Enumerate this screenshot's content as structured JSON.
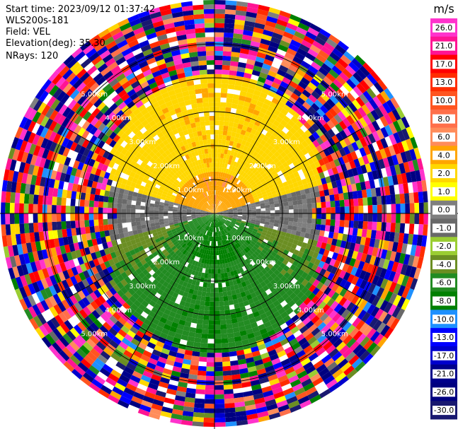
{
  "header": {
    "start_time": "Start time: 2023/09/12 01:37:42",
    "instrument": "WLS200s-181",
    "field": "Field: VEL",
    "elevation": "Elevation(deg): 35.30",
    "nrays": "NRays: 120"
  },
  "chart_data": {
    "type": "heatmap",
    "projection": "polar (PPI scan)",
    "field": "VEL",
    "n_rays": 120,
    "range_rings_km": [
      1.0,
      2.0,
      3.0,
      4.0,
      5.0
    ],
    "ring_labels": [
      "1.00km",
      "2.00km",
      "3.00km",
      "4.00km",
      "5.00km"
    ],
    "spokes": 12,
    "max_range_km": 6.3,
    "valid_range_km": 3.5,
    "colorbar": {
      "unit": "m/s",
      "ticks": [
        "26.0",
        "21.0",
        "17.0",
        "13.0",
        "10.0",
        "8.0",
        "6.0",
        "4.0",
        "2.0",
        "1.0",
        "0.0",
        "-1.0",
        "-2.0",
        "-4.0",
        "-6.0",
        "-8.0",
        "-10.0",
        "-13.0",
        "-17.0",
        "-21.0",
        "-26.0",
        "-30.0"
      ],
      "bins": [
        {
          "min": 26,
          "max": 30,
          "color": "#ff33cc"
        },
        {
          "min": 21,
          "max": 26,
          "color": "#ff1493"
        },
        {
          "min": 17,
          "max": 21,
          "color": "#ff0000"
        },
        {
          "min": 13,
          "max": 17,
          "color": "#ff2d00"
        },
        {
          "min": 10,
          "max": 13,
          "color": "#ff5520"
        },
        {
          "min": 8,
          "max": 10,
          "color": "#ff6f4a"
        },
        {
          "min": 6,
          "max": 8,
          "color": "#ff8c5a"
        },
        {
          "min": 4,
          "max": 6,
          "color": "#ffa500"
        },
        {
          "min": 2,
          "max": 4,
          "color": "#ffd700"
        },
        {
          "min": 1,
          "max": 2,
          "color": "#ffff00"
        },
        {
          "min": 0,
          "max": 1,
          "color": "#7f7f7f"
        },
        {
          "min": -1,
          "max": 0,
          "color": "#696969"
        },
        {
          "min": -2,
          "max": -1,
          "color": "#9acd32"
        },
        {
          "min": -4,
          "max": -2,
          "color": "#6b8e23"
        },
        {
          "min": -6,
          "max": -4,
          "color": "#228b22"
        },
        {
          "min": -8,
          "max": -6,
          "color": "#008000"
        },
        {
          "min": -10,
          "max": -8,
          "color": "#1e90ff"
        },
        {
          "min": -13,
          "max": -10,
          "color": "#0000ff"
        },
        {
          "min": -17,
          "max": -13,
          "color": "#0000cd"
        },
        {
          "min": -21,
          "max": -17,
          "color": "#00008b"
        },
        {
          "min": -26,
          "max": -21,
          "color": "#000080"
        },
        {
          "min": -30,
          "max": -26,
          "color": "#191970"
        }
      ]
    },
    "pattern": {
      "north_sector_velocity_ms": [
        1,
        6
      ],
      "south_sector_velocity_ms": [
        -8,
        -1
      ],
      "east_west_sector_velocity_ms": [
        -1,
        1
      ],
      "beyond_valid_range": "noise (random colors)"
    }
  }
}
